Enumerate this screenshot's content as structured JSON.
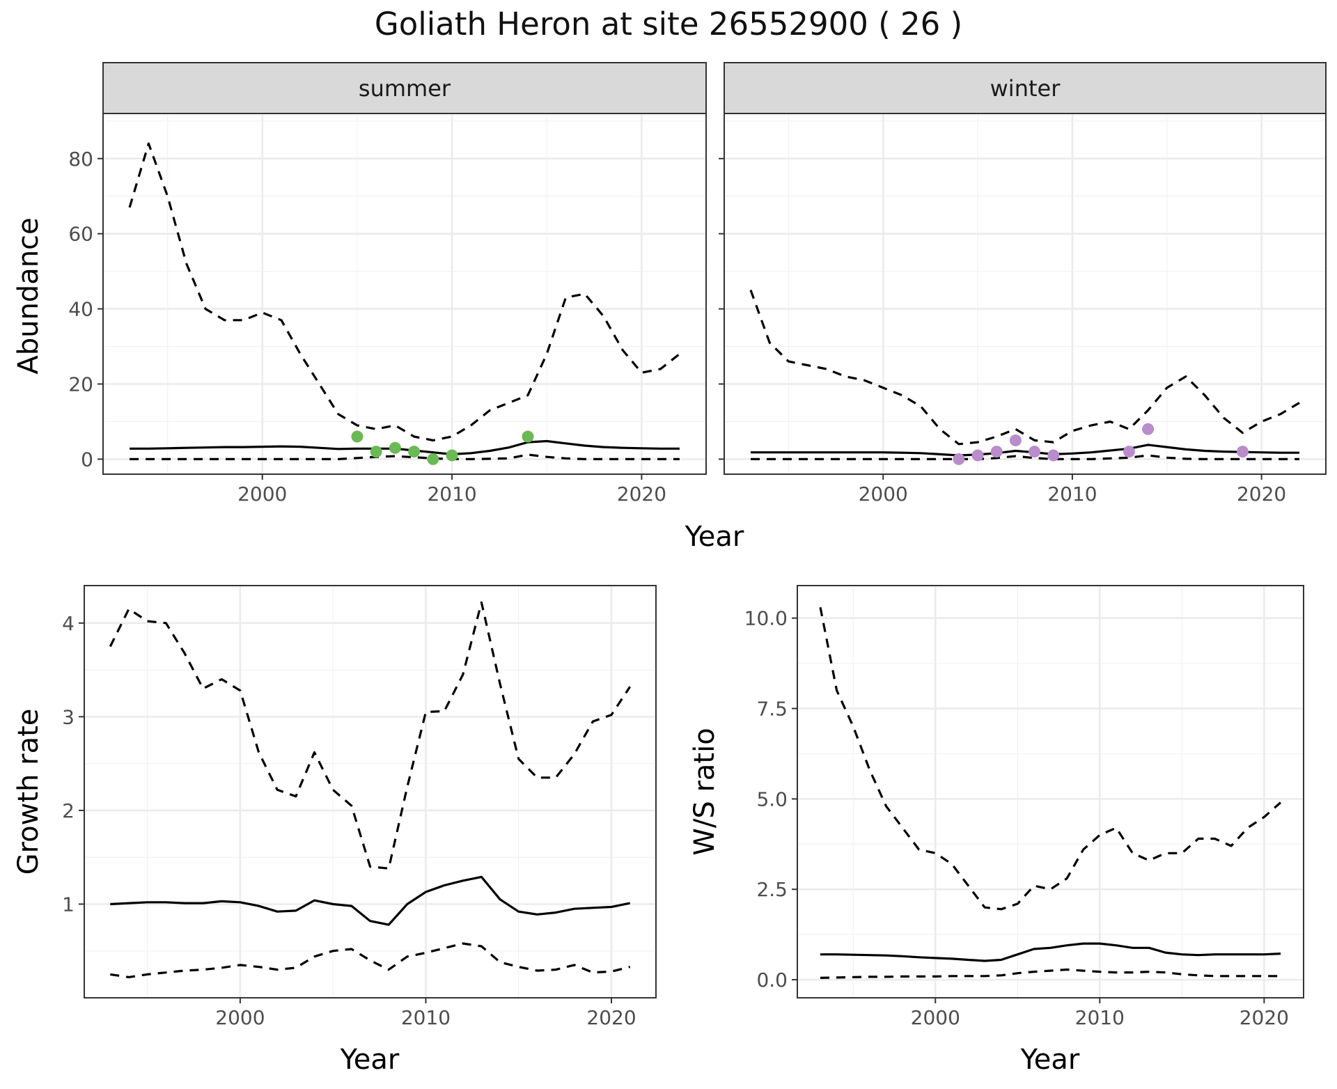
{
  "figure": {
    "title": "Goliath Heron at site 26552900 ( 26 )"
  },
  "chart_data": [
    {
      "type": "line",
      "facet_group": "abundance",
      "facets": [
        {
          "strip": "summer",
          "x": [
            1993,
            1994,
            1995,
            1996,
            1997,
            1998,
            1999,
            2000,
            2001,
            2002,
            2003,
            2004,
            2005,
            2006,
            2007,
            2008,
            2009,
            2010,
            2011,
            2012,
            2013,
            2014,
            2015,
            2016,
            2017,
            2018,
            2019,
            2020,
            2021,
            2022
          ],
          "series": [
            {
              "role": "estimate",
              "style": "solid",
              "values": [
                2.8,
                2.8,
                2.9,
                3.0,
                3.1,
                3.2,
                3.2,
                3.3,
                3.4,
                3.3,
                3.0,
                2.7,
                2.8,
                2.8,
                2.8,
                2.3,
                1.8,
                1.3,
                1.6,
                2.2,
                3.1,
                4.5,
                4.8,
                4.2,
                3.6,
                3.2,
                3.0,
                2.9,
                2.8,
                2.8
              ]
            },
            {
              "role": "upper",
              "style": "dashed",
              "values": [
                67,
                84,
                70,
                52,
                40,
                37,
                37,
                39,
                37,
                28,
                20,
                12,
                9,
                8,
                9,
                6,
                5,
                6,
                9,
                13,
                15,
                17,
                28,
                43,
                44,
                38,
                29,
                23,
                24,
                28
              ]
            },
            {
              "role": "lower",
              "style": "dashed",
              "values": [
                0,
                0,
                0,
                0,
                0,
                0,
                0,
                0,
                0,
                0,
                0,
                0,
                0.3,
                0.6,
                0.8,
                0.5,
                0.2,
                0,
                0,
                0.1,
                0.2,
                1.2,
                0.6,
                0.2,
                0,
                0,
                0,
                0,
                0,
                0
              ]
            }
          ],
          "observations": {
            "x": [
              2005,
              2006,
              2007,
              2008,
              2009,
              2010,
              2014
            ],
            "y": [
              6,
              2,
              3,
              2,
              0,
              1,
              6
            ],
            "color": "#6ab954"
          }
        },
        {
          "strip": "winter",
          "x": [
            1993,
            1994,
            1995,
            1996,
            1997,
            1998,
            1999,
            2000,
            2001,
            2002,
            2003,
            2004,
            2005,
            2006,
            2007,
            2008,
            2009,
            2010,
            2011,
            2012,
            2013,
            2014,
            2015,
            2016,
            2017,
            2018,
            2019,
            2020,
            2021,
            2022
          ],
          "series": [
            {
              "role": "estimate",
              "style": "solid",
              "values": [
                1.8,
                1.8,
                1.8,
                1.8,
                1.8,
                1.8,
                1.8,
                1.8,
                1.7,
                1.6,
                1.3,
                1.0,
                1.2,
                1.6,
                2.2,
                1.8,
                1.3,
                1.5,
                1.8,
                2.3,
                2.8,
                3.8,
                3.2,
                2.6,
                2.2,
                2.0,
                1.9,
                1.8,
                1.7,
                1.7
              ]
            },
            {
              "role": "upper",
              "style": "dashed",
              "values": [
                45,
                31,
                26,
                25,
                24,
                22,
                21,
                19,
                17,
                14,
                8,
                4,
                4.5,
                6,
                8,
                5,
                4.5,
                7.5,
                9,
                10,
                8,
                13,
                19,
                22,
                17,
                11,
                7,
                10,
                12,
                15
              ]
            },
            {
              "role": "lower",
              "style": "dashed",
              "values": [
                0,
                0,
                0,
                0,
                0,
                0,
                0,
                0,
                0,
                0,
                0,
                0,
                0,
                0.3,
                0.8,
                0.3,
                0,
                0,
                0,
                0.2,
                0.4,
                1.0,
                0.4,
                0.1,
                0,
                0,
                0,
                0,
                0,
                0
              ]
            }
          ],
          "observations": {
            "x": [
              2004,
              2005,
              2006,
              2007,
              2008,
              2009,
              2013,
              2014,
              2019
            ],
            "y": [
              0,
              1,
              2,
              5,
              2,
              1,
              2,
              8,
              2
            ],
            "color": "#b98ccb"
          }
        }
      ],
      "ylabel": "Abundance",
      "xlabel": "Year",
      "ylim": [
        -4,
        92
      ],
      "xlim": [
        1991.6,
        2023.4
      ],
      "yticks": [
        0,
        20,
        40,
        60,
        80
      ],
      "xticks": [
        2000,
        2010,
        2020
      ],
      "grid": true
    },
    {
      "type": "line",
      "x": [
        1993,
        1994,
        1995,
        1996,
        1997,
        1998,
        1999,
        2000,
        2001,
        2002,
        2003,
        2004,
        2005,
        2006,
        2007,
        2008,
        2009,
        2010,
        2011,
        2012,
        2013,
        2014,
        2015,
        2016,
        2017,
        2018,
        2019,
        2020,
        2021
      ],
      "series": [
        {
          "role": "estimate",
          "style": "solid",
          "values": [
            1.0,
            1.01,
            1.02,
            1.02,
            1.01,
            1.01,
            1.03,
            1.02,
            0.98,
            0.92,
            0.93,
            1.04,
            1.0,
            0.98,
            0.82,
            0.78,
            1.0,
            1.13,
            1.2,
            1.25,
            1.29,
            1.05,
            0.92,
            0.89,
            0.91,
            0.95,
            0.96,
            0.97,
            1.01
          ]
        },
        {
          "role": "upper",
          "style": "dashed",
          "values": [
            3.75,
            4.15,
            4.02,
            4.0,
            3.68,
            3.3,
            3.4,
            3.28,
            2.62,
            2.22,
            2.15,
            2.62,
            2.22,
            2.05,
            1.4,
            1.38,
            2.25,
            3.05,
            3.06,
            3.45,
            4.22,
            3.35,
            2.55,
            2.35,
            2.35,
            2.6,
            2.95,
            3.02,
            3.32
          ]
        },
        {
          "role": "lower",
          "style": "dashed",
          "values": [
            0.25,
            0.22,
            0.25,
            0.27,
            0.29,
            0.3,
            0.32,
            0.35,
            0.33,
            0.3,
            0.32,
            0.44,
            0.5,
            0.52,
            0.4,
            0.3,
            0.44,
            0.48,
            0.53,
            0.58,
            0.55,
            0.38,
            0.33,
            0.29,
            0.3,
            0.35,
            0.27,
            0.28,
            0.33
          ]
        }
      ],
      "ylabel": "Growth rate",
      "xlabel": "Year",
      "ylim": [
        0.0,
        4.4
      ],
      "xlim": [
        1991.6,
        2022.4
      ],
      "yticks": [
        1,
        2,
        3,
        4
      ],
      "xticks": [
        2000,
        2010,
        2020
      ],
      "grid": true
    },
    {
      "type": "line",
      "x": [
        1993,
        1994,
        1995,
        1996,
        1997,
        1998,
        1999,
        2000,
        2001,
        2002,
        2003,
        2004,
        2005,
        2006,
        2007,
        2008,
        2009,
        2010,
        2011,
        2012,
        2013,
        2014,
        2015,
        2016,
        2017,
        2018,
        2019,
        2020,
        2021
      ],
      "series": [
        {
          "role": "estimate",
          "style": "solid",
          "values": [
            0.7,
            0.7,
            0.69,
            0.68,
            0.67,
            0.65,
            0.62,
            0.6,
            0.58,
            0.55,
            0.52,
            0.55,
            0.7,
            0.85,
            0.88,
            0.95,
            1.0,
            1.0,
            0.95,
            0.88,
            0.88,
            0.75,
            0.7,
            0.68,
            0.7,
            0.7,
            0.7,
            0.7,
            0.72
          ]
        },
        {
          "role": "upper",
          "style": "dashed",
          "values": [
            10.3,
            8.0,
            7.0,
            5.8,
            4.8,
            4.2,
            3.6,
            3.5,
            3.2,
            2.6,
            2.0,
            1.95,
            2.1,
            2.6,
            2.5,
            2.8,
            3.6,
            4.0,
            4.2,
            3.5,
            3.3,
            3.5,
            3.5,
            3.9,
            3.9,
            3.7,
            4.2,
            4.5,
            4.9
          ]
        },
        {
          "role": "lower",
          "style": "dashed",
          "values": [
            0.05,
            0.06,
            0.07,
            0.08,
            0.08,
            0.09,
            0.09,
            0.09,
            0.1,
            0.1,
            0.1,
            0.12,
            0.18,
            0.22,
            0.25,
            0.28,
            0.25,
            0.22,
            0.2,
            0.2,
            0.22,
            0.2,
            0.15,
            0.12,
            0.1,
            0.1,
            0.1,
            0.1,
            0.1
          ]
        }
      ],
      "ylabel": "W/S ratio",
      "xlabel": "Year",
      "ylim": [
        -0.5,
        10.9
      ],
      "xlim": [
        1991.6,
        2022.4
      ],
      "yticks": [
        0.0,
        2.5,
        5.0,
        7.5,
        10.0
      ],
      "ytick_labels": [
        "0.0",
        "2.5",
        "5.0",
        "7.5",
        "10.0"
      ],
      "xticks": [
        2000,
        2010,
        2020
      ],
      "grid": true
    }
  ]
}
